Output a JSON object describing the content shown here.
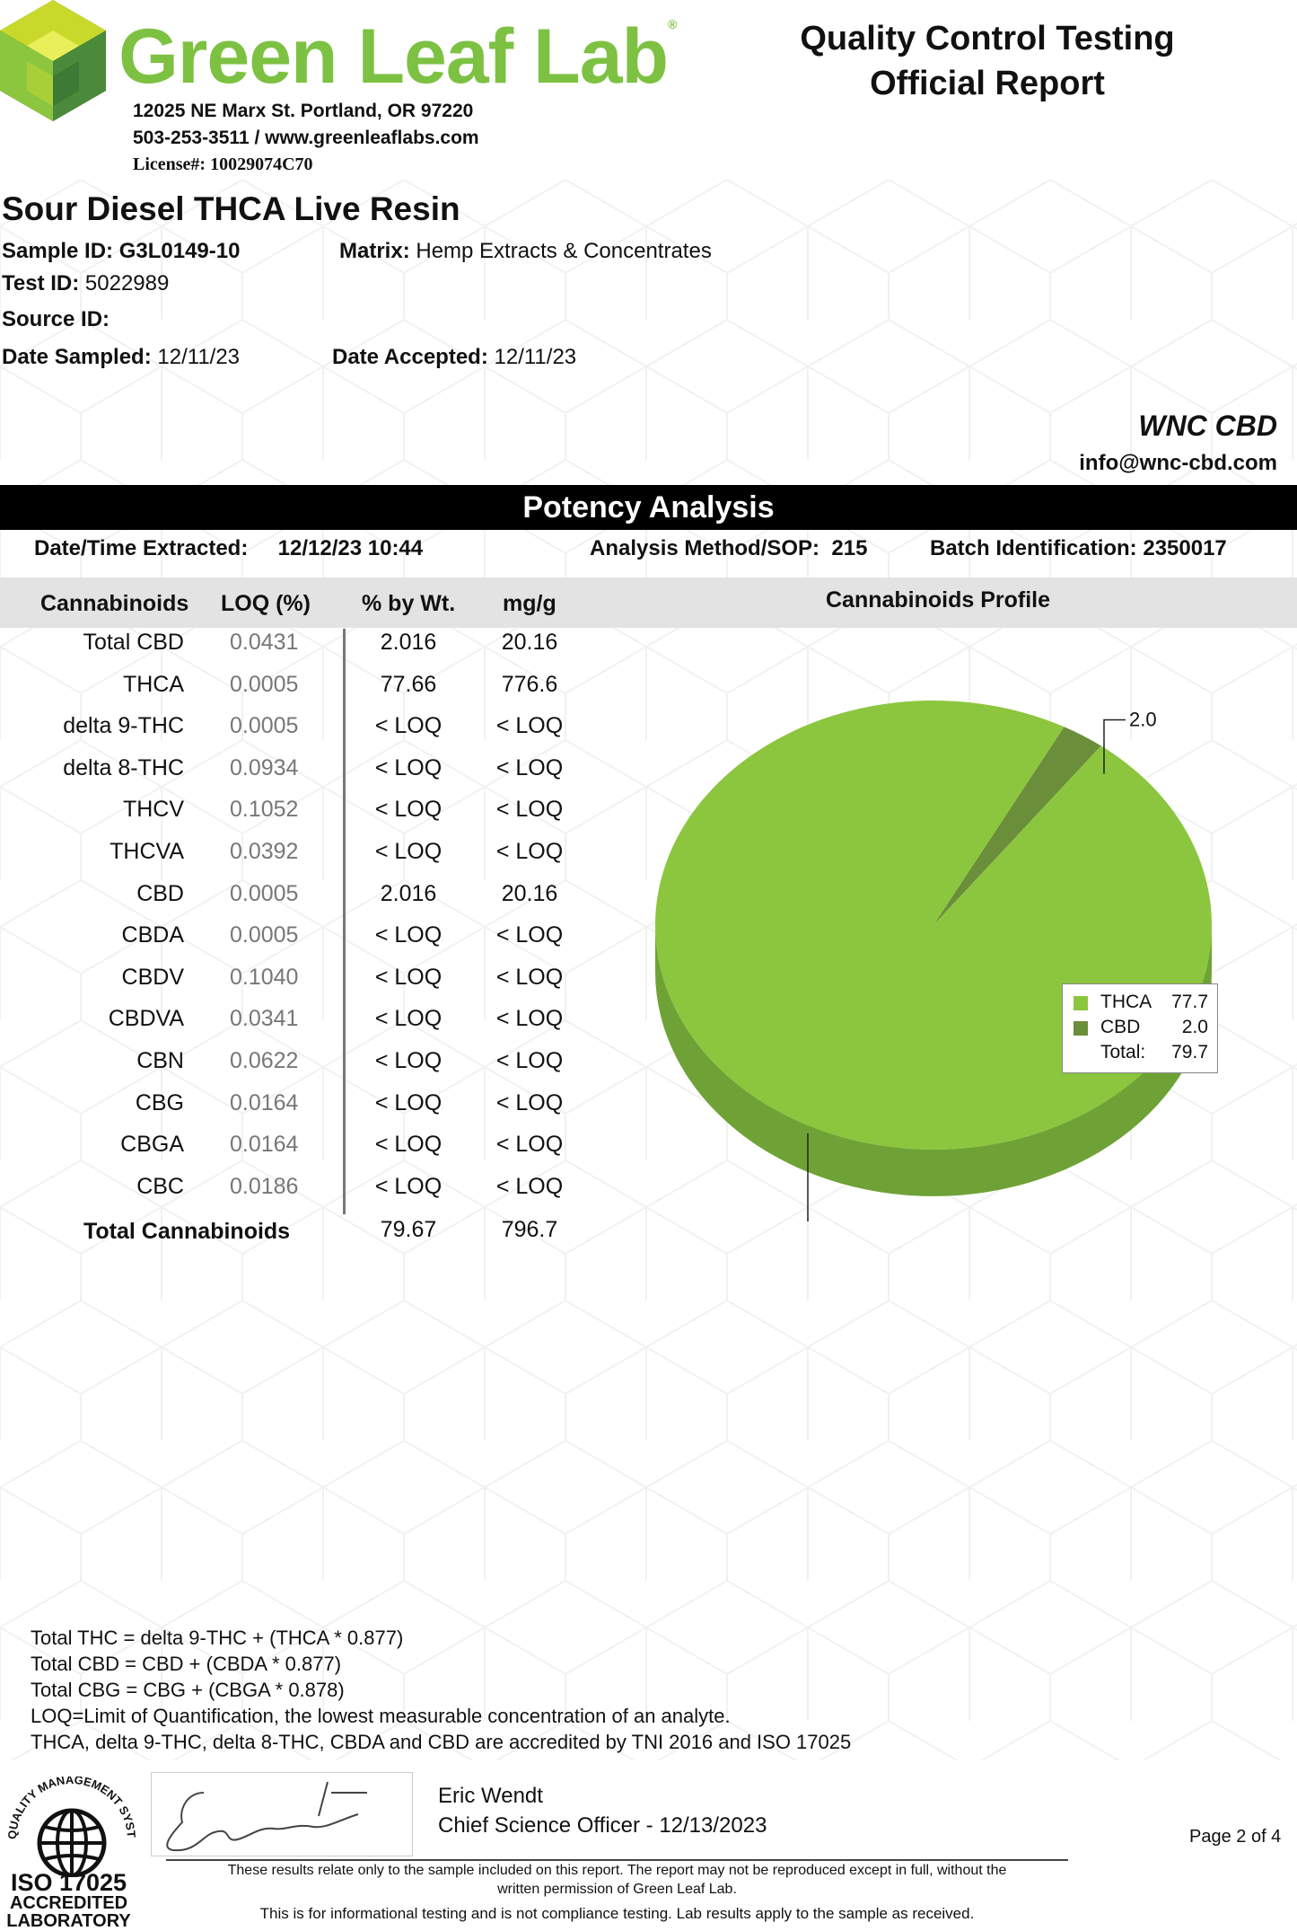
{
  "header": {
    "brand": "Green Leaf Lab",
    "brand_mark": "®",
    "address": "12025 NE Marx St. Portland, OR 97220",
    "phone_web": "503-253-3511 / www.greenleaflabs.com",
    "license": "License#: 10029074C70",
    "report_title_1": "Quality Control Testing",
    "report_title_2": "Official Report"
  },
  "sample": {
    "name": "Sour Diesel THCA Live Resin",
    "sample_id_label": "Sample ID:",
    "sample_id": "G3L0149-10",
    "matrix_label": "Matrix:",
    "matrix": "Hemp Extracts & Concentrates",
    "test_id_label": "Test ID:",
    "test_id": "5022989",
    "source_id_label": "Source ID:",
    "date_sampled_label": "Date Sampled:",
    "date_sampled": "12/11/23",
    "date_accepted_label": "Date Accepted:",
    "date_accepted": "12/11/23"
  },
  "client": {
    "name": "WNC CBD",
    "email": "info@wnc-cbd.com"
  },
  "potency": {
    "title": "Potency Analysis",
    "extracted_label": "Date/Time Extracted:",
    "extracted_value": "12/12/23  10:44",
    "method_label": "Analysis Method/SOP:",
    "method_value": "215",
    "batch_label": "Batch Identification:",
    "batch_value": "2350017"
  },
  "table": {
    "headers": [
      "Cannabinoids",
      "LOQ (%)",
      "% by Wt.",
      "mg/g"
    ],
    "rows": [
      {
        "name": "Total CBD",
        "loq": "0.0431",
        "pct": "2.016",
        "mg": "20.16"
      },
      {
        "name": "THCA",
        "loq": "0.0005",
        "pct": "77.66",
        "mg": "776.6"
      },
      {
        "name": "delta 9-THC",
        "loq": "0.0005",
        "pct": "< LOQ",
        "mg": "< LOQ"
      },
      {
        "name": "delta 8-THC",
        "loq": "0.0934",
        "pct": "< LOQ",
        "mg": "< LOQ"
      },
      {
        "name": "THCV",
        "loq": "0.1052",
        "pct": "< LOQ",
        "mg": "< LOQ"
      },
      {
        "name": "THCVA",
        "loq": "0.0392",
        "pct": "< LOQ",
        "mg": "< LOQ"
      },
      {
        "name": "CBD",
        "loq": "0.0005",
        "pct": "2.016",
        "mg": "20.16"
      },
      {
        "name": "CBDA",
        "loq": "0.0005",
        "pct": "< LOQ",
        "mg": "< LOQ"
      },
      {
        "name": "CBDV",
        "loq": "0.1040",
        "pct": "< LOQ",
        "mg": "< LOQ"
      },
      {
        "name": "CBDVA",
        "loq": "0.0341",
        "pct": "< LOQ",
        "mg": "< LOQ"
      },
      {
        "name": "CBN",
        "loq": "0.0622",
        "pct": "< LOQ",
        "mg": "< LOQ"
      },
      {
        "name": "CBG",
        "loq": "0.0164",
        "pct": "< LOQ",
        "mg": "< LOQ"
      },
      {
        "name": "CBGA",
        "loq": "0.0164",
        "pct": "< LOQ",
        "mg": "< LOQ"
      },
      {
        "name": "CBC",
        "loq": "0.0186",
        "pct": "< LOQ",
        "mg": "< LOQ"
      }
    ],
    "total_label": "Total Cannabinoids",
    "total_pct": "79.67",
    "total_mg": "796.7"
  },
  "chart_data": {
    "type": "pie",
    "title": "Cannabinoids Profile",
    "categories": [
      "THCA",
      "CBD"
    ],
    "values": [
      77.7,
      2.0
    ],
    "data_labels": [
      "77.7",
      "2.0"
    ],
    "colors": [
      "#8cc63f",
      "#6b8e3a"
    ],
    "legend": {
      "placement": "right",
      "entries": [
        {
          "label": "THCA",
          "value": "77.7"
        },
        {
          "label": "CBD",
          "value": "2.0"
        }
      ],
      "total_label": "Total:",
      "total_value": "79.7"
    }
  },
  "notes": [
    "Total THC =  delta 9-THC + (THCA * 0.877)",
    "Total CBD =  CBD + (CBDA * 0.877)",
    "Total CBG = CBG + (CBGA * 0.878)",
    "LOQ=Limit of Quantification, the lowest measurable concentration of an analyte.",
    "THCA, delta 9-THC, delta 8-THC, CBDA and CBD are accredited by TNI 2016 and ISO 17025"
  ],
  "footer": {
    "seal_arc": "QUALITY MANAGEMENT SYSTEM",
    "seal_line1": "ISO 17025",
    "seal_line2": "ACCREDITED",
    "seal_line3": "LABORATORY",
    "signer_name": "Eric Wendt",
    "signer_title": "Chief Science Officer - 12/13/2023",
    "page": "Page 2 of 4",
    "disclaimer_1": "These results relate only to the sample included on this report. The report may not be reproduced except in full, without the",
    "disclaimer_2": "written permission of Green Leaf Lab.",
    "disclaimer_3": "This is for informational testing and is not compliance testing. Lab results apply to the sample as received."
  }
}
